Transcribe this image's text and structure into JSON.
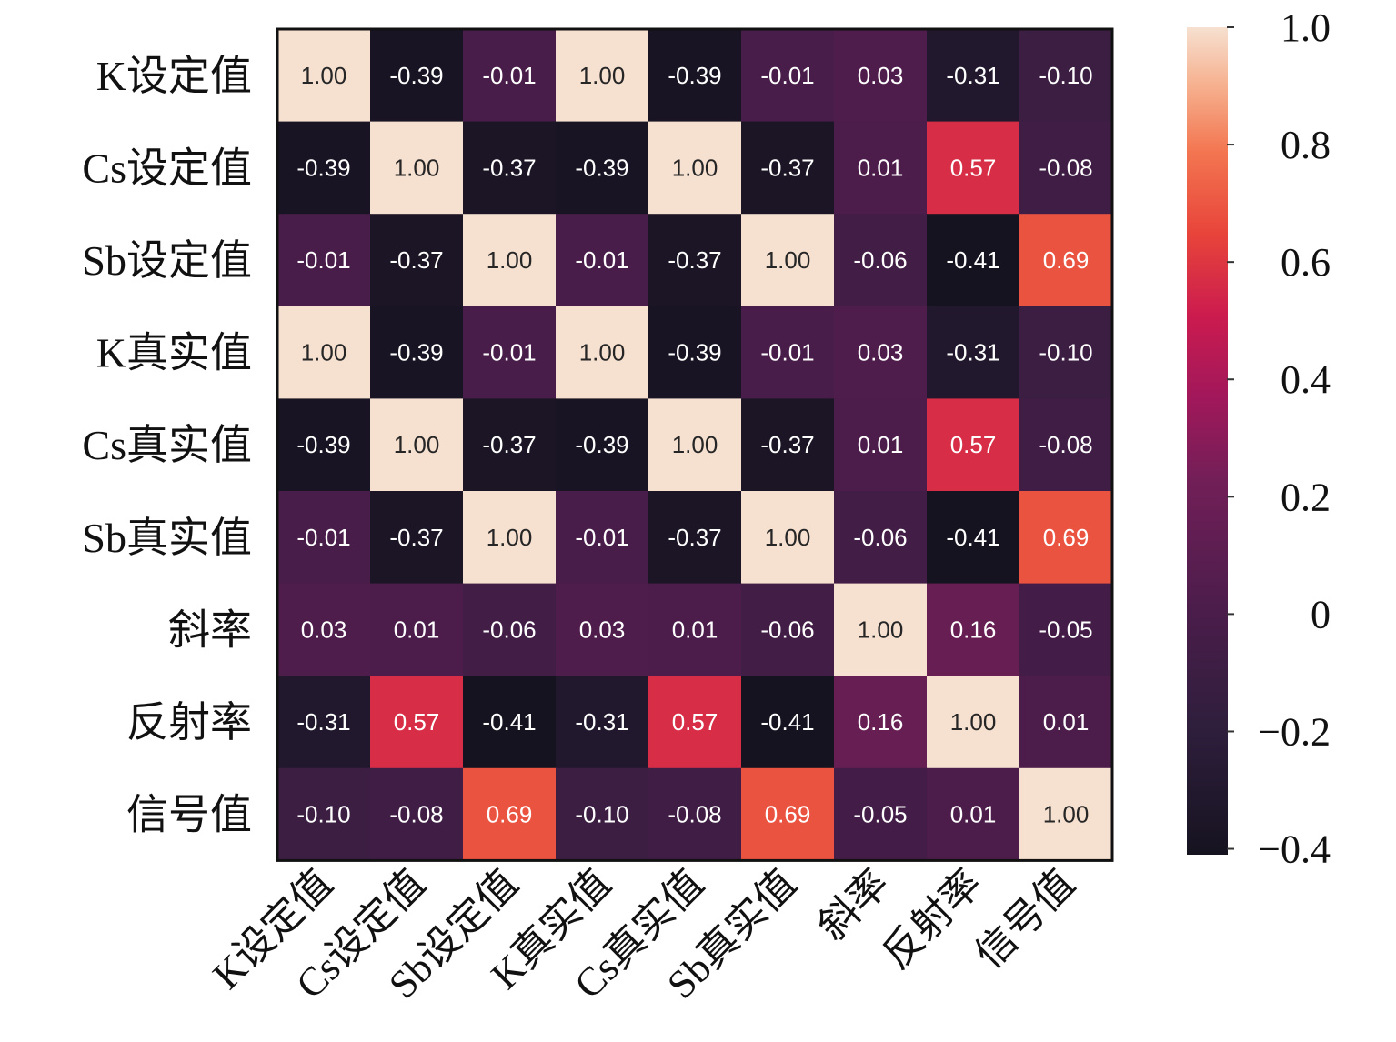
{
  "chart_data": {
    "type": "heatmap",
    "labels": [
      "K设定值",
      "Cs设定值",
      "Sb设定值",
      "K真实值",
      "Cs真实值",
      "Sb真实值",
      "斜率",
      "反射率",
      "信号值"
    ],
    "matrix": [
      [
        1.0,
        -0.39,
        -0.01,
        1.0,
        -0.39,
        -0.01,
        0.03,
        -0.31,
        -0.1
      ],
      [
        -0.39,
        1.0,
        -0.37,
        -0.39,
        1.0,
        -0.37,
        0.01,
        0.57,
        -0.08
      ],
      [
        -0.01,
        -0.37,
        1.0,
        -0.01,
        -0.37,
        1.0,
        -0.06,
        -0.41,
        0.69
      ],
      [
        1.0,
        -0.39,
        -0.01,
        1.0,
        -0.39,
        -0.01,
        0.03,
        -0.31,
        -0.1
      ],
      [
        -0.39,
        1.0,
        -0.37,
        -0.39,
        1.0,
        -0.37,
        0.01,
        0.57,
        -0.08
      ],
      [
        -0.01,
        -0.37,
        1.0,
        -0.01,
        -0.37,
        1.0,
        -0.06,
        -0.41,
        0.69
      ],
      [
        0.03,
        0.01,
        -0.06,
        0.03,
        0.01,
        -0.06,
        1.0,
        0.16,
        -0.05
      ],
      [
        -0.31,
        0.57,
        -0.41,
        -0.31,
        0.57,
        -0.41,
        0.16,
        1.0,
        0.01
      ],
      [
        -0.1,
        -0.08,
        0.69,
        -0.1,
        -0.08,
        0.69,
        -0.05,
        0.01,
        1.0
      ]
    ],
    "value_format": "2 decimals",
    "colorbar": {
      "range": [
        -0.41,
        1.0
      ],
      "ticks": [
        1.0,
        0.8,
        0.6,
        0.4,
        0.2,
        0,
        -0.2,
        -0.4
      ],
      "tick_labels": [
        "1.0",
        "0.8",
        "0.6",
        "0.4",
        "0.2",
        "0",
        "−0.2",
        "−0.4"
      ],
      "colormap": "rocket",
      "stops": [
        {
          "v": 0.0,
          "color": "#161320"
        },
        {
          "v": 0.15,
          "color": "#2e1e3c"
        },
        {
          "v": 0.3,
          "color": "#4c1d4b"
        },
        {
          "v": 0.45,
          "color": "#711f57"
        },
        {
          "v": 0.55,
          "color": "#a0185b"
        },
        {
          "v": 0.65,
          "color": "#cb1b4f"
        },
        {
          "v": 0.75,
          "color": "#e8443a"
        },
        {
          "v": 0.85,
          "color": "#f37651"
        },
        {
          "v": 0.93,
          "color": "#f6b18f"
        },
        {
          "v": 1.0,
          "color": "#f6e0d0"
        }
      ]
    },
    "grid": false,
    "legend": "colorbar-right"
  }
}
